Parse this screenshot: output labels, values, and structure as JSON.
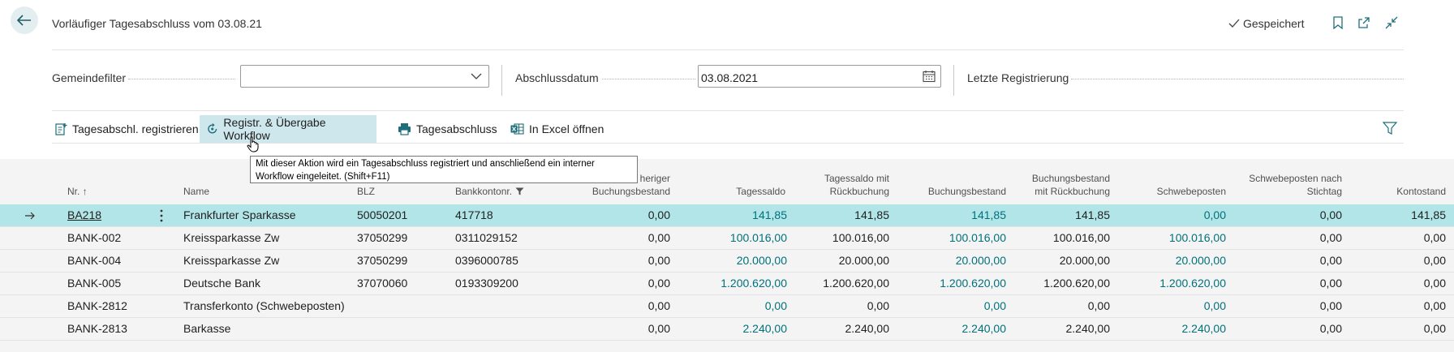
{
  "header": {
    "title": "Vorläufiger Tagesabschluss vom 03.08.21",
    "saved_label": "Gespeichert"
  },
  "filters": {
    "community_filter_label": "Gemeindefilter",
    "community_filter_value": "",
    "closing_date_label": "Abschlussdatum",
    "closing_date_value": "03.08.2021",
    "last_registration_label": "Letzte Registrierung"
  },
  "actions": [
    {
      "label": "Tagesabschl. registrieren",
      "icon": "register-doc-icon"
    },
    {
      "label": "Registr. & Übergabe Workflow",
      "icon": "workflow-icon"
    },
    {
      "label": "Tagesabschluss",
      "icon": "printer-icon"
    },
    {
      "label": "In Excel öffnen",
      "icon": "excel-icon"
    }
  ],
  "tooltip": {
    "line1": "Mit dieser Aktion wird ein Tagesabschluss registriert und anschließend ein interner",
    "line2": "Workflow eingeleitet. (Shift+F11)"
  },
  "table": {
    "columns": {
      "nr": "Nr. ↑",
      "name": "Name",
      "blz": "BLZ",
      "account": "Bankkontonr.",
      "prev_booking_1": "heriger",
      "prev_booking_2": "Buchungsbestand",
      "daily_balance": "Tagessaldo",
      "daily_rev_1": "Tagessaldo mit",
      "daily_rev_2": "Rückbuchung",
      "booking_balance": "Buchungsbestand",
      "booking_rev_1": "Buchungsbestand",
      "booking_rev_2": "mit Rückbuchung",
      "pending": "Schwebeposten",
      "pending_after_1": "Schwebeposten nach",
      "pending_after_2": "Stichtag",
      "account_balance": "Kontostand"
    },
    "rows": [
      {
        "nr": "BA218",
        "name": "Frankfurter Sparkasse",
        "blz": "50050201",
        "account": "417718",
        "prev": "0,00",
        "daily": "141,85",
        "daily_rev": "141,85",
        "booking": "141,85",
        "booking_rev": "141,85",
        "pending": "0,00",
        "pending_after": "0,00",
        "balance": "141,85"
      },
      {
        "nr": "BANK-002",
        "name": "Kreissparkasse Zw",
        "blz": "37050299",
        "account": "0311029152",
        "prev": "0,00",
        "daily": "100.016,00",
        "daily_rev": "100.016,00",
        "booking": "100.016,00",
        "booking_rev": "100.016,00",
        "pending": "100.016,00",
        "pending_after": "0,00",
        "balance": "0,00"
      },
      {
        "nr": "BANK-004",
        "name": "Kreissparkasse Zw",
        "blz": "37050299",
        "account": "0396000785",
        "prev": "0,00",
        "daily": "20.000,00",
        "daily_rev": "20.000,00",
        "booking": "20.000,00",
        "booking_rev": "20.000,00",
        "pending": "20.000,00",
        "pending_after": "0,00",
        "balance": "0,00"
      },
      {
        "nr": "BANK-005",
        "name": "Deutsche Bank",
        "blz": "37070060",
        "account": "0193309200",
        "prev": "0,00",
        "daily": "1.200.620,00",
        "daily_rev": "1.200.620,00",
        "booking": "1.200.620,00",
        "booking_rev": "1.200.620,00",
        "pending": "1.200.620,00",
        "pending_after": "0,00",
        "balance": "0,00"
      },
      {
        "nr": "BANK-2812",
        "name": "Transferkonto (Schwebeposten)",
        "blz": "",
        "account": "",
        "prev": "0,00",
        "daily": "0,00",
        "daily_rev": "0,00",
        "booking": "0,00",
        "booking_rev": "0,00",
        "pending": "0,00",
        "pending_after": "0,00",
        "balance": "0,00"
      },
      {
        "nr": "BANK-2813",
        "name": "Barkasse",
        "blz": "",
        "account": "",
        "prev": "0,00",
        "daily": "2.240,00",
        "daily_rev": "2.240,00",
        "booking": "2.240,00",
        "booking_rev": "2.240,00",
        "pending": "2.240,00",
        "pending_after": "0,00",
        "balance": "0,00"
      }
    ]
  }
}
